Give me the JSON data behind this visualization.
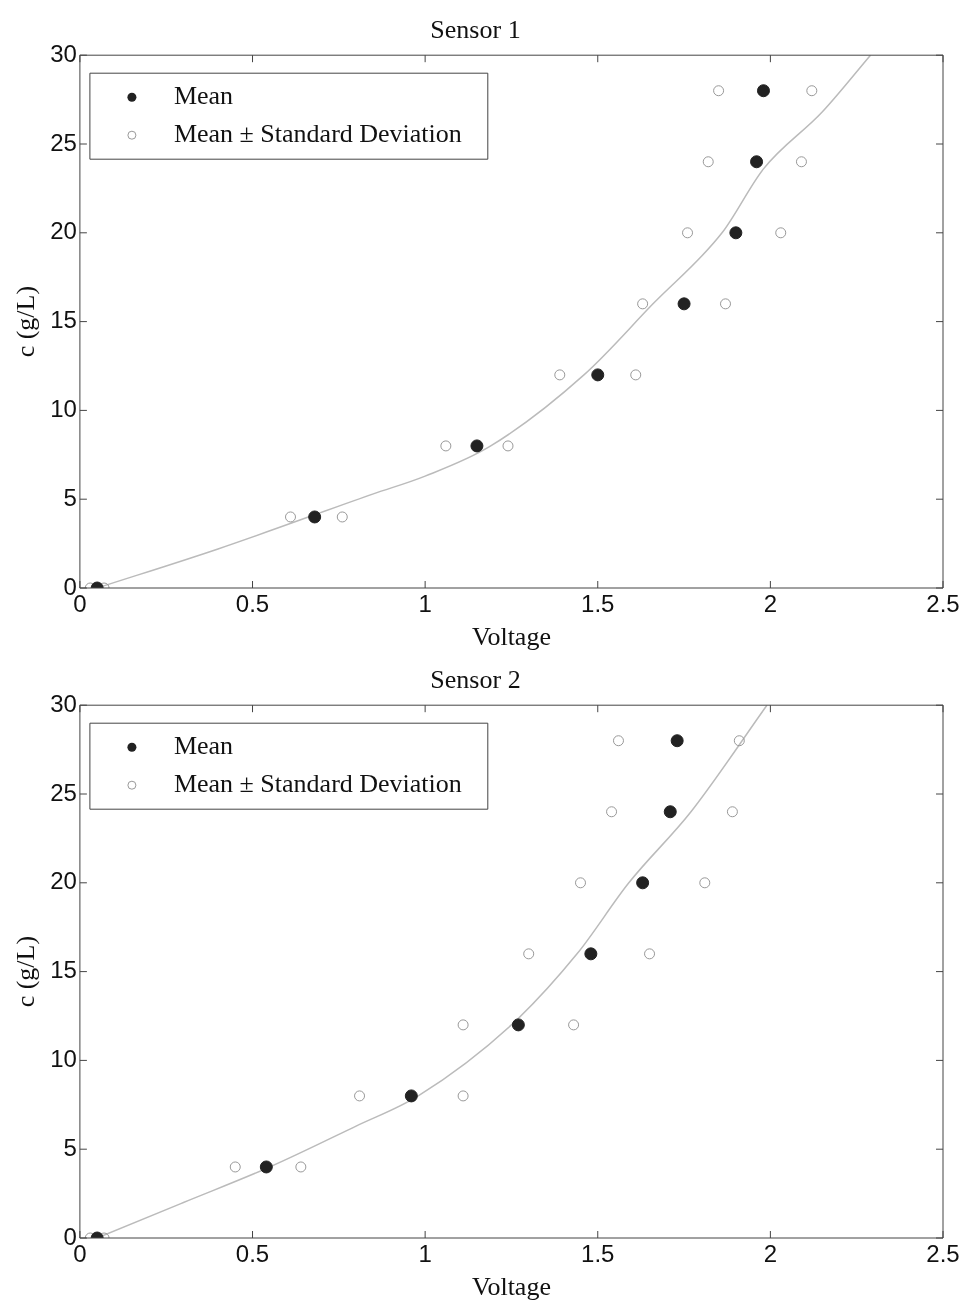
{
  "chart_data": [
    {
      "type": "scatter",
      "title": "Sensor 1",
      "xlabel": "Voltage",
      "ylabel": "c (g/L)",
      "xlim": [
        0,
        2.5
      ],
      "xticks": [
        0,
        0.5,
        1,
        1.5,
        2,
        2.5
      ],
      "ylim": [
        0,
        30
      ],
      "yticks": [
        0,
        5,
        10,
        15,
        20,
        25,
        30
      ],
      "grid": false,
      "legend": "top left",
      "marker": "circle",
      "series": [
        {
          "name": "Mean",
          "color": "#222222",
          "x": [
            0.05,
            0.68,
            1.15,
            1.5,
            1.75,
            1.9,
            1.96,
            1.98
          ],
          "values": [
            0,
            4,
            8,
            12,
            16,
            20,
            24,
            28
          ]
        },
        {
          "name": "Mean ± Standard Deviation",
          "color": "#999999",
          "x": [
            0.03,
            0.61,
            1.06,
            1.39,
            1.63,
            1.76,
            1.82,
            1.85,
            0.07,
            0.76,
            1.24,
            1.61,
            1.87,
            2.03,
            2.09,
            2.12
          ],
          "values": [
            0,
            4,
            8,
            12,
            16,
            20,
            24,
            28,
            0,
            4,
            8,
            12,
            16,
            20,
            24,
            28
          ]
        },
        {
          "type": "line",
          "marker": "none",
          "color": "#bbbbbb",
          "x": [
            0.05,
            0.4,
            0.85,
            1.0,
            1.19,
            1.46,
            1.66,
            1.86,
            1.98,
            2.15,
            2.29
          ],
          "values": [
            0,
            2.2,
            5.3,
            6.3,
            8,
            12,
            16,
            20,
            23.6,
            26.8,
            30
          ]
        }
      ]
    },
    {
      "type": "scatter",
      "title": "Sensor 2",
      "xlabel": "Voltage",
      "ylabel": "c (g/L)",
      "xlim": [
        0,
        2.5
      ],
      "xticks": [
        0,
        0.5,
        1,
        1.5,
        2,
        2.5
      ],
      "ylim": [
        0,
        30
      ],
      "yticks": [
        0,
        5,
        10,
        15,
        20,
        25,
        30
      ],
      "grid": false,
      "legend": "top left",
      "marker": "circle",
      "series": [
        {
          "name": "Mean",
          "color": "#222222",
          "x": [
            0.05,
            0.54,
            0.96,
            1.27,
            1.48,
            1.63,
            1.71,
            1.73
          ],
          "values": [
            0,
            4,
            8,
            12,
            16,
            20,
            24,
            28
          ]
        },
        {
          "name": "Mean ± Standard Deviation",
          "color": "#999999",
          "x": [
            0.03,
            0.45,
            0.81,
            1.11,
            1.3,
            1.45,
            1.54,
            1.56,
            0.07,
            0.64,
            1.11,
            1.43,
            1.65,
            1.81,
            1.89,
            1.91
          ],
          "values": [
            0,
            4,
            8,
            12,
            16,
            20,
            24,
            28,
            0,
            4,
            8,
            12,
            16,
            20,
            24,
            28
          ]
        },
        {
          "type": "line",
          "marker": "none",
          "color": "#bbbbbb",
          "x": [
            0.05,
            0.3,
            0.55,
            0.8,
            0.98,
            1.25,
            1.44,
            1.59,
            1.77,
            1.99
          ],
          "values": [
            0,
            2,
            4,
            6.3,
            8,
            12,
            16,
            20,
            24,
            30
          ]
        }
      ]
    }
  ]
}
